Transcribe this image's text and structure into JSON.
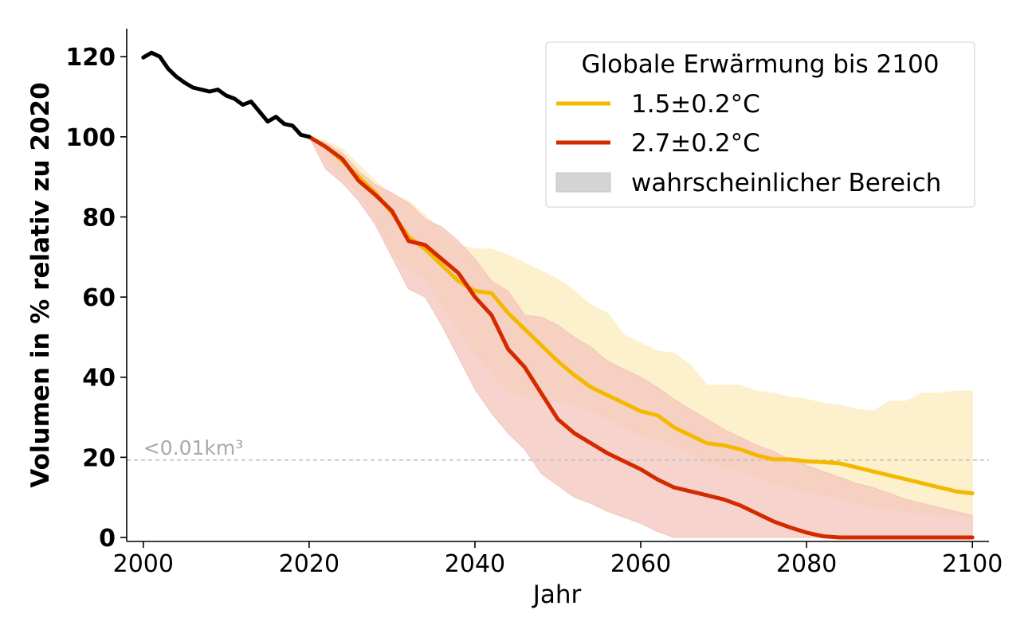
{
  "chart_data": {
    "type": "line",
    "xlabel": "Jahr",
    "ylabel": "Volumen in % relativ zu 2020",
    "xlim": [
      1998,
      2102
    ],
    "ylim": [
      -1,
      127
    ],
    "xticks": [
      "2000",
      "2020",
      "2040",
      "2060",
      "2080",
      "2100"
    ],
    "yticks": [
      "0",
      "20",
      "40",
      "60",
      "80",
      "100",
      "120"
    ],
    "grid": false,
    "legend": {
      "title": "Globale Erwärmung bis 2100",
      "placement": "top-right",
      "entries": [
        {
          "label": "1.5±0.2°C",
          "color": "#f5b800",
          "kind": "line"
        },
        {
          "label": "2.7±0.2°C",
          "color": "#d42a00",
          "kind": "line"
        },
        {
          "label": "wahrscheinlicher Bereich",
          "color": "#d4d4d4",
          "kind": "band"
        }
      ]
    },
    "annotation": {
      "text": "<0.01km³",
      "y": 19.3,
      "color": "#a9a9a9"
    },
    "observed": {
      "color": "#000000",
      "x": [
        2000,
        2001,
        2002,
        2003,
        2004,
        2005,
        2006,
        2007,
        2008,
        2009,
        2010,
        2011,
        2012,
        2013,
        2014,
        2015,
        2016,
        2017,
        2018,
        2019,
        2020
      ],
      "y": [
        119.8,
        121,
        120,
        117,
        115,
        113.5,
        112.3,
        111.8,
        111.3,
        111.8,
        110.3,
        109.5,
        108,
        108.8,
        106.3,
        103.8,
        105,
        103.2,
        102.8,
        100.5,
        100
      ]
    },
    "series": [
      {
        "name": "1.5±0.2°C",
        "color": "#f5b800",
        "band_color": "#fdeec4",
        "x": [
          2020,
          2022,
          2024,
          2026,
          2028,
          2030,
          2032,
          2034,
          2036,
          2038,
          2040,
          2042,
          2044,
          2046,
          2048,
          2050,
          2052,
          2054,
          2056,
          2058,
          2060,
          2062,
          2064,
          2066,
          2068,
          2070,
          2072,
          2074,
          2076,
          2078,
          2080,
          2082,
          2084,
          2086,
          2088,
          2090,
          2092,
          2094,
          2096,
          2098,
          2100
        ],
        "y": [
          100,
          97.5,
          94,
          90,
          86,
          81,
          75,
          72,
          68,
          64,
          61.5,
          61,
          56,
          52,
          48,
          44,
          40.5,
          37.5,
          35.5,
          33.5,
          31.5,
          30.5,
          27.5,
          25.5,
          23.5,
          23,
          22,
          20.5,
          19.5,
          19.5,
          19,
          18.8,
          18.5,
          17.5,
          16.5,
          15.5,
          14.5,
          13.5,
          12.5,
          11.5,
          11
        ],
        "upper": [
          100,
          99,
          97,
          93,
          89,
          85.5,
          84,
          80.5,
          76,
          73,
          72,
          72,
          70.5,
          68.5,
          66.5,
          64.5,
          61.5,
          58,
          56,
          50.5,
          48.5,
          46.5,
          46,
          43,
          38,
          38,
          38,
          36.5,
          36,
          35,
          34.5,
          33.5,
          33,
          32,
          31.5,
          34,
          34,
          36,
          36,
          36.5,
          36.5
        ],
        "lower": [
          100,
          94,
          90,
          86,
          79,
          71,
          67,
          64,
          58,
          52,
          46,
          41,
          36.5,
          35,
          34.5,
          34,
          33.5,
          31.5,
          29.5,
          27.5,
          25.5,
          24.5,
          23,
          21,
          19,
          17.5,
          16.5,
          15,
          13.5,
          12.5,
          11.5,
          10.5,
          9.5,
          8.5,
          7.5,
          7,
          6.5,
          6,
          5.5,
          5.5,
          5
        ]
      },
      {
        "name": "2.7±0.2°C",
        "color": "#d42a00",
        "band_color": "#f3c4bc",
        "x": [
          2020,
          2022,
          2024,
          2026,
          2028,
          2030,
          2032,
          2034,
          2036,
          2038,
          2040,
          2042,
          2044,
          2046,
          2048,
          2050,
          2052,
          2054,
          2056,
          2058,
          2060,
          2062,
          2064,
          2066,
          2068,
          2070,
          2072,
          2074,
          2076,
          2078,
          2080,
          2082,
          2084,
          2086,
          2088,
          2090,
          2092,
          2094,
          2096,
          2098,
          2100
        ],
        "y": [
          100,
          97.5,
          94.5,
          89,
          85.5,
          81.5,
          74,
          73,
          69.5,
          66,
          60,
          55.5,
          47,
          42.5,
          36,
          29.5,
          26,
          23.5,
          21,
          19,
          17,
          14.5,
          12.5,
          11.5,
          10.5,
          9.5,
          8,
          6,
          4,
          2.5,
          1.2,
          0.3,
          0,
          0,
          0,
          0,
          0,
          0,
          0,
          0,
          0
        ],
        "upper": [
          100,
          98.5,
          96,
          91.5,
          88,
          86,
          83.5,
          79.5,
          77.5,
          74,
          69.5,
          64,
          61.5,
          55.5,
          55,
          53,
          50,
          47.5,
          44,
          42,
          40,
          37.5,
          34.5,
          32,
          29.5,
          27,
          25,
          23,
          21.5,
          19.5,
          18,
          16.5,
          15,
          13.5,
          12.5,
          11,
          9.5,
          8.5,
          7.5,
          6.5,
          5.5
        ],
        "lower": [
          100,
          92,
          88.5,
          84,
          78,
          70,
          62,
          60,
          53,
          45,
          37,
          31,
          26,
          22,
          16,
          13,
          10,
          8.5,
          6.5,
          5,
          3.5,
          1.5,
          0,
          0,
          0,
          0,
          0,
          0,
          0,
          0,
          0,
          0,
          0,
          0,
          0,
          0,
          0,
          0,
          0,
          0,
          0
        ]
      }
    ]
  }
}
